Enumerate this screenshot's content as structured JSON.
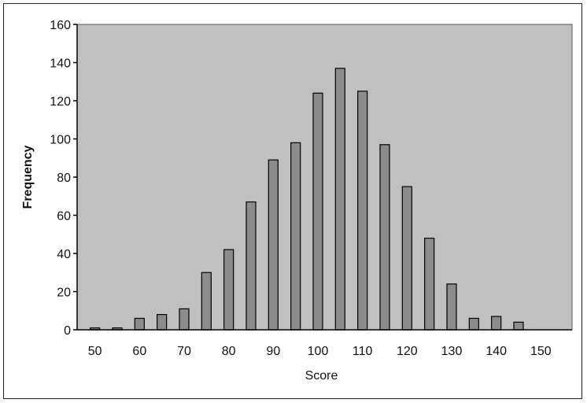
{
  "chart_data": {
    "type": "bar",
    "title": "",
    "xlabel": "Score",
    "ylabel": "Frequency",
    "x": [
      50,
      55,
      60,
      65,
      70,
      75,
      80,
      85,
      90,
      95,
      100,
      105,
      110,
      115,
      120,
      125,
      130,
      135,
      140,
      145
    ],
    "values": [
      1,
      1,
      6,
      8,
      11,
      30,
      42,
      67,
      89,
      98,
      124,
      137,
      125,
      97,
      75,
      48,
      24,
      6,
      7,
      4
    ],
    "xlim": [
      46,
      157
    ],
    "ylim": [
      0,
      160
    ],
    "x_ticks": [
      50,
      60,
      70,
      80,
      90,
      100,
      110,
      120,
      130,
      140,
      150
    ],
    "y_ticks": [
      0,
      20,
      40,
      60,
      80,
      100,
      120,
      140,
      160
    ],
    "grid": false,
    "legend": "none",
    "colors": {
      "plot_background": "#c0c0c0",
      "bar_fill": "#8c8c8c",
      "bar_stroke": "#000000",
      "axis": "#000000"
    }
  }
}
